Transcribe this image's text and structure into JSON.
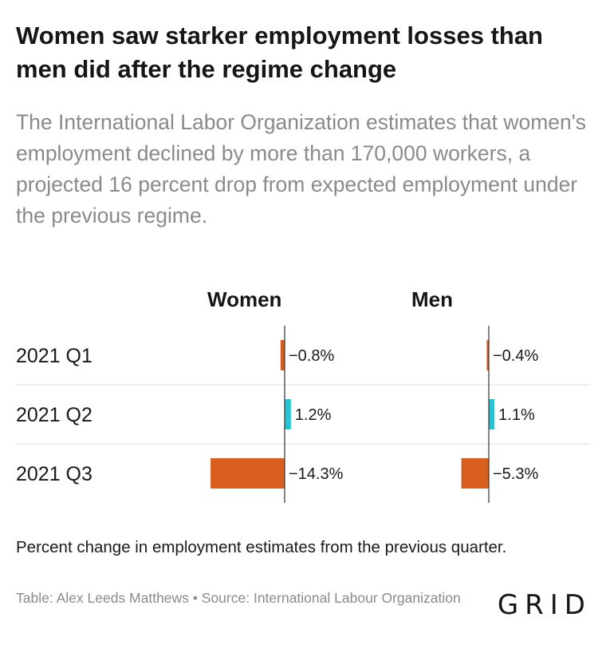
{
  "title": "Women saw starker employment losses than men did after the regime change",
  "subtitle": "The International Labor Organization estimates that women's employment declined by more than 170,000 workers, a projected 16 percent drop from expected employment under the previous regime.",
  "note": "Percent change in employment estimates from the previous quarter.",
  "source": "Table: Alex Leeds Matthews • Source: International Labour Organization",
  "logo": "GRID",
  "colors": {
    "negative": "#d95f1e",
    "positive": "#27c4d4",
    "axis": "#333333",
    "divider": "#dddddd"
  },
  "chart_data": {
    "type": "bar",
    "orientation": "horizontal",
    "categories": [
      "2021 Q1",
      "2021 Q2",
      "2021 Q3"
    ],
    "series": [
      {
        "name": "Women",
        "values": [
          -0.8,
          1.2,
          -14.3
        ],
        "labels": [
          "−0.8%",
          "1.2%",
          "−14.3%"
        ]
      },
      {
        "name": "Men",
        "values": [
          -0.4,
          1.1,
          -5.3
        ],
        "labels": [
          "−0.4%",
          "1.1%",
          "−5.3%"
        ]
      }
    ]
  }
}
